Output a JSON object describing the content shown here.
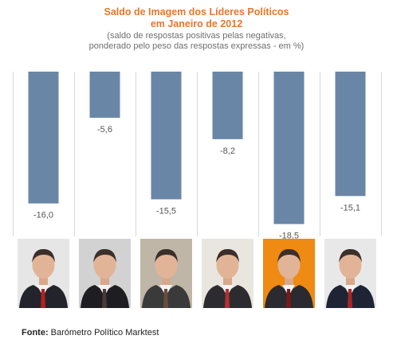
{
  "header": {
    "title_line1": "Saldo de Imagem dos Líderes Políticos",
    "title_line2": "em Janeiro de 2012",
    "subtitle_line1": "(saldo de respostas positivas pelas negativas,",
    "subtitle_line2": "ponderado pelo peso das respostas expressas - em %)"
  },
  "chart_data": {
    "type": "bar",
    "title": "Saldo de Imagem dos Líderes Políticos em Janeiro de 2012",
    "subtitle": "(saldo de respostas positivas pelas negativas, ponderado pelo peso das respostas expressas - em %)",
    "categories": [
      "",
      "",
      "",
      "",
      "",
      ""
    ],
    "values": [
      -16.0,
      -5.6,
      -15.5,
      -8.2,
      -18.5,
      -15.1
    ],
    "labels": [
      "-16,0",
      "-5,6",
      "-15,5",
      "-8,2",
      "-18,5",
      "-15,1"
    ],
    "ylim": [
      -20,
      0
    ],
    "grid": "vertical separators",
    "bar_color": "#6a86a6",
    "label_color": "#555555"
  },
  "photos": [
    {
      "name": "leader-1",
      "bg": "#e6e6e6",
      "suit": "#23232b",
      "tie": "#b32020"
    },
    {
      "name": "leader-2",
      "bg": "#d2d2d2",
      "suit": "#1e1e22",
      "tie": "#4a3a35"
    },
    {
      "name": "leader-3",
      "bg": "#bfb6a8",
      "suit": "#3a3a3a",
      "tie": "#6b4b3b"
    },
    {
      "name": "leader-4",
      "bg": "#e9e6df",
      "suit": "#2c2c30",
      "tie": "#b43030"
    },
    {
      "name": "leader-5",
      "bg": "#ef8a12",
      "suit": "#2a2a30",
      "tie": "#7a1818"
    },
    {
      "name": "leader-6",
      "bg": "#e8e8e8",
      "suit": "#1f2435",
      "tie": "#a62626"
    }
  ],
  "footer": {
    "source_label": "Fonte:",
    "source_text": " Barómetro Político Marktest"
  },
  "colors": {
    "title": "#e8762d",
    "subtitle": "#6f6f6f",
    "grid": "#d9d9d9"
  }
}
